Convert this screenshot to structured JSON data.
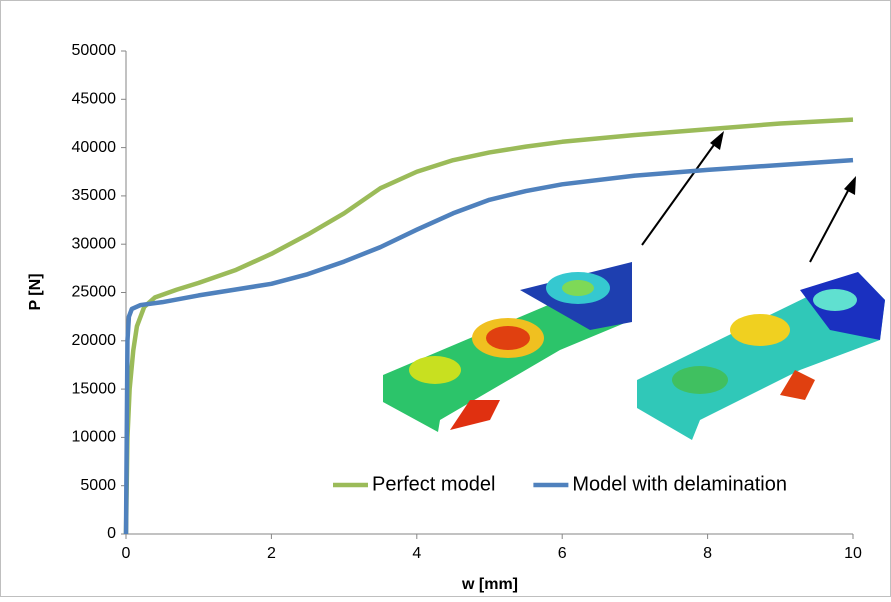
{
  "chart_data": {
    "type": "line",
    "x_label": "w [mm]",
    "y_label": "P [N]",
    "xlim": [
      0,
      10
    ],
    "xticks": [
      0,
      2,
      4,
      6,
      8,
      10
    ],
    "ylim": [
      0,
      50000
    ],
    "yticks": [
      0,
      5000,
      10000,
      15000,
      20000,
      25000,
      30000,
      35000,
      40000,
      45000,
      50000
    ],
    "grid": false,
    "legend": "bottom-right",
    "series": [
      {
        "name": "Perfect model",
        "color": "#9bbb59",
        "x": [
          0,
          0.02,
          0.05,
          0.1,
          0.15,
          0.25,
          0.4,
          0.7,
          1.0,
          1.5,
          2,
          2.5,
          3,
          3.5,
          4,
          4.5,
          5,
          5.5,
          6,
          7,
          8,
          9,
          10
        ],
        "values": [
          0,
          10000,
          15000,
          19000,
          21500,
          23500,
          24500,
          25300,
          26000,
          27300,
          29000,
          31000,
          33200,
          35800,
          37500,
          38700,
          39500,
          40100,
          40600,
          41300,
          41900,
          42500,
          42900
        ]
      },
      {
        "name": "Model with delamination",
        "color": "#4f81bd",
        "x": [
          0,
          0.01,
          0.02,
          0.04,
          0.08,
          0.2,
          0.5,
          1,
          1.5,
          2,
          2.5,
          3,
          3.5,
          4,
          4.5,
          5,
          5.5,
          6,
          7,
          8,
          9,
          10
        ],
        "values": [
          0,
          10000,
          20000,
          22500,
          23300,
          23700,
          24000,
          24700,
          25300,
          25900,
          26900,
          28200,
          29700,
          31500,
          33200,
          34600,
          35500,
          36200,
          37100,
          37700,
          38200,
          38700
        ]
      }
    ]
  }
}
